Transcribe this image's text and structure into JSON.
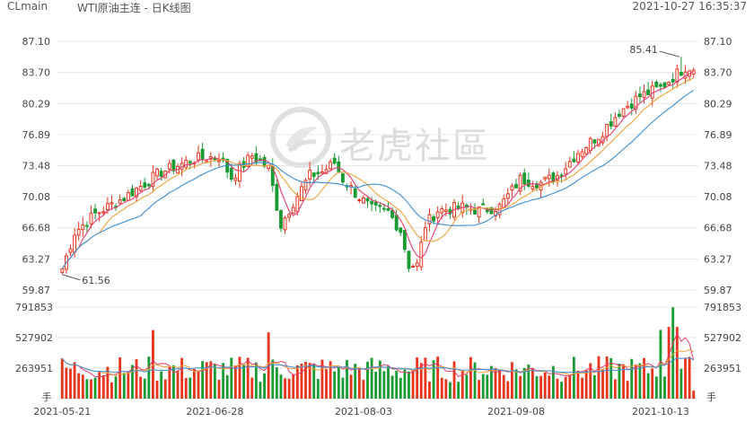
{
  "header": {
    "symbol": "CLmain",
    "title": "WTI原油主连 - 日K线图",
    "timestamp": "2021-10-27 16:35:37"
  },
  "watermark": {
    "text": "老虎社區",
    "icon": "tiger-logo-icon"
  },
  "colors": {
    "up": "#e8361e",
    "down": "#1a9b33",
    "ma5": "#e63b6f",
    "ma10": "#f0a23c",
    "ma20": "#3a8fd6",
    "grid": "#e6e6e6"
  },
  "chart_data": [
    {
      "type": "candlestick",
      "name": "price",
      "ylim": [
        59.87,
        87.1
      ],
      "y_ticks": [
        "87.10",
        "83.70",
        "80.29",
        "76.89",
        "73.48",
        "70.08",
        "66.68",
        "63.27",
        "59.87"
      ],
      "x_ticks": [
        "2021-05-21",
        "2021-06-28",
        "2021-08-03",
        "2021-09-08",
        "2021-10-13"
      ],
      "annotations": {
        "low": "61.56",
        "high": "85.41"
      }
    },
    {
      "type": "bar",
      "name": "volume",
      "ylim": [
        0,
        791853
      ],
      "y_ticks": [
        "791853",
        "527902",
        "263951"
      ],
      "unit": "手"
    }
  ]
}
